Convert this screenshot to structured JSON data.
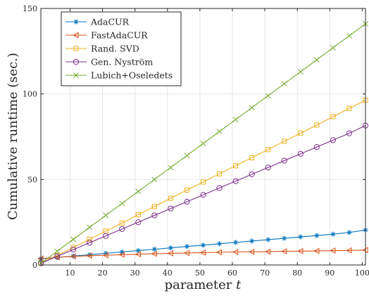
{
  "chart_data": {
    "type": "line",
    "xlabel": "parameter",
    "xlabel_var": "t",
    "ylabel": "Cumulative runtime (sec.)",
    "xlim": [
      1,
      101
    ],
    "ylim": [
      0,
      150
    ],
    "xticks": [
      10,
      20,
      30,
      40,
      50,
      60,
      70,
      80,
      90,
      100
    ],
    "yticks": [
      0,
      50,
      100,
      150
    ],
    "grid": true,
    "legend_position": "top-left",
    "x": [
      1,
      6,
      11,
      16,
      21,
      26,
      31,
      36,
      41,
      46,
      51,
      56,
      61,
      66,
      71,
      76,
      81,
      86,
      91,
      96,
      101
    ],
    "series": [
      {
        "name": "AdaCUR",
        "color": "#0072BD",
        "marker": "asterisk",
        "values": [
          3.6,
          4.4,
          5.2,
          6.0,
          6.8,
          7.6,
          8.4,
          9.2,
          10.0,
          10.8,
          11.6,
          12.4,
          13.2,
          14.0,
          14.8,
          15.6,
          16.4,
          17.2,
          18.0,
          19.0,
          20.4
        ]
      },
      {
        "name": "FastAdaCUR",
        "color": "#D95319",
        "marker": "triangle-left",
        "values": [
          3.8,
          4.5,
          5.0,
          5.4,
          5.7,
          6.0,
          6.3,
          6.6,
          6.8,
          7.0,
          7.2,
          7.4,
          7.6,
          7.7,
          7.8,
          8.0,
          8.1,
          8.2,
          8.4,
          8.5,
          8.7
        ]
      },
      {
        "name": "Rand. SVD",
        "color": "#EDB120",
        "marker": "square",
        "values": [
          1.2,
          5.5,
          10.2,
          15.0,
          19.8,
          24.5,
          29.4,
          34.2,
          39.0,
          43.8,
          48.5,
          53.3,
          58.0,
          62.7,
          67.5,
          72.3,
          77.0,
          81.8,
          86.7,
          91.6,
          96.3
        ]
      },
      {
        "name": "Gen. Nyström",
        "color": "#7E2F8E",
        "marker": "circle",
        "values": [
          1.0,
          5.0,
          9.0,
          13.0,
          17.0,
          21.0,
          25.0,
          29.0,
          33.0,
          37.0,
          41.0,
          45.0,
          49.0,
          53.0,
          57.0,
          61.0,
          65.0,
          69.0,
          73.0,
          77.0,
          81.5
        ]
      },
      {
        "name": "Lubich+Oseledets",
        "color": "#77AC30",
        "marker": "x",
        "values": [
          1.0,
          8.0,
          15.0,
          22.0,
          29.0,
          36.0,
          43.0,
          50.0,
          57.0,
          64.0,
          71.0,
          78.0,
          85.0,
          92.0,
          99.0,
          106.0,
          113.0,
          120.0,
          127.0,
          134.0,
          141.0
        ]
      }
    ]
  }
}
